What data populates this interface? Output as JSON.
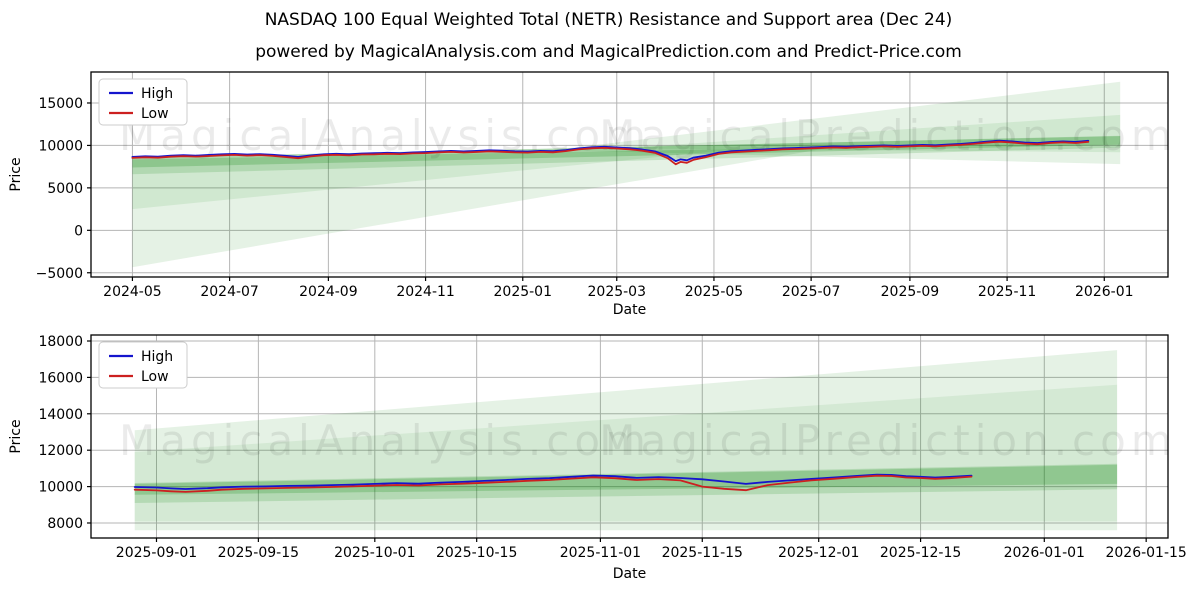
{
  "header": {
    "title": "NASDAQ 100 Equal Weighted Total (NETR) Resistance and Support area (Dec 24)",
    "subtitle": "powered by MagicalAnalysis.com and MagicalPrediction.com and Predict-Price.com"
  },
  "watermarks": {
    "left_text": "MagicalAnalysis.com",
    "right_text": "MagicalPrediction.com",
    "color": "rgba(0,0,0,0.08)"
  },
  "colors": {
    "high": "#1515cd",
    "low": "#cc2020",
    "fill": "#008000",
    "grid": "#b5b5b5",
    "spine": "#000000",
    "text": "#000000",
    "legend_border": "#cccccc"
  },
  "chart_data": [
    {
      "type": "line",
      "name": "main-history-chart",
      "xlabel": "Date",
      "ylabel": "Price",
      "legend": [
        "High",
        "Low"
      ],
      "legend_position": "upper-left",
      "grid": true,
      "xlim": [
        "2024-04-05",
        "2026-02-10"
      ],
      "ylim": [
        -5500,
        18650
      ],
      "xticks": [
        {
          "d": "2024-05-01",
          "label": "2024-05"
        },
        {
          "d": "2024-07-01",
          "label": "2024-07"
        },
        {
          "d": "2024-09-01",
          "label": "2024-09"
        },
        {
          "d": "2024-11-01",
          "label": "2024-11"
        },
        {
          "d": "2025-01-01",
          "label": "2025-01"
        },
        {
          "d": "2025-03-01",
          "label": "2025-03"
        },
        {
          "d": "2025-05-01",
          "label": "2025-05"
        },
        {
          "d": "2025-07-01",
          "label": "2025-07"
        },
        {
          "d": "2025-09-01",
          "label": "2025-09"
        },
        {
          "d": "2025-11-01",
          "label": "2025-11"
        },
        {
          "d": "2026-01-01",
          "label": "2026-01"
        }
      ],
      "yticks": [
        {
          "v": -5000,
          "label": "−5000"
        },
        {
          "v": 0,
          "label": "0"
        },
        {
          "v": 5000,
          "label": "5000"
        },
        {
          "v": 10000,
          "label": "10000"
        },
        {
          "v": 15000,
          "label": "15000"
        }
      ],
      "series": [
        {
          "name": "High",
          "color_key": "high"
        },
        {
          "name": "Low",
          "color_key": "low"
        }
      ],
      "columns": [
        "date",
        "high",
        "low"
      ],
      "rows": [
        [
          "2024-05-01",
          8650,
          8530
        ],
        [
          "2024-05-09",
          8720,
          8600
        ],
        [
          "2024-05-17",
          8680,
          8560
        ],
        [
          "2024-05-25",
          8790,
          8670
        ],
        [
          "2024-06-02",
          8850,
          8730
        ],
        [
          "2024-06-10",
          8800,
          8680
        ],
        [
          "2024-06-18",
          8880,
          8760
        ],
        [
          "2024-06-26",
          8950,
          8830
        ],
        [
          "2024-07-04",
          9000,
          8880
        ],
        [
          "2024-07-12",
          8930,
          8800
        ],
        [
          "2024-07-20",
          8980,
          8860
        ],
        [
          "2024-07-28",
          8900,
          8770
        ],
        [
          "2024-08-05",
          8780,
          8640
        ],
        [
          "2024-08-13",
          8650,
          8500
        ],
        [
          "2024-08-21",
          8830,
          8710
        ],
        [
          "2024-08-29",
          8960,
          8850
        ],
        [
          "2024-09-06",
          9010,
          8890
        ],
        [
          "2024-09-14",
          8950,
          8830
        ],
        [
          "2024-09-22",
          9050,
          8930
        ],
        [
          "2024-09-30",
          9080,
          8960
        ],
        [
          "2024-10-08",
          9130,
          9010
        ],
        [
          "2024-10-16",
          9100,
          8980
        ],
        [
          "2024-10-24",
          9180,
          9060
        ],
        [
          "2024-11-01",
          9220,
          9100
        ],
        [
          "2024-11-09",
          9300,
          9180
        ],
        [
          "2024-11-17",
          9360,
          9240
        ],
        [
          "2024-11-25",
          9300,
          9170
        ],
        [
          "2024-12-03",
          9350,
          9230
        ],
        [
          "2024-12-11",
          9420,
          9300
        ],
        [
          "2024-12-19",
          9380,
          9250
        ],
        [
          "2024-12-27",
          9310,
          9180
        ],
        [
          "2025-01-04",
          9290,
          9160
        ],
        [
          "2025-01-12",
          9360,
          9240
        ],
        [
          "2025-01-20",
          9320,
          9190
        ],
        [
          "2025-01-28",
          9450,
          9330
        ],
        [
          "2025-02-05",
          9650,
          9530
        ],
        [
          "2025-02-13",
          9780,
          9660
        ],
        [
          "2025-02-21",
          9840,
          9710
        ],
        [
          "2025-03-01",
          9770,
          9640
        ],
        [
          "2025-03-09",
          9680,
          9540
        ],
        [
          "2025-03-17",
          9520,
          9380
        ],
        [
          "2025-03-25",
          9300,
          9130
        ],
        [
          "2025-04-02",
          8750,
          8500
        ],
        [
          "2025-04-07",
          8150,
          7780
        ],
        [
          "2025-04-10",
          8350,
          8060
        ],
        [
          "2025-04-14",
          8250,
          7950
        ],
        [
          "2025-04-18",
          8550,
          8300
        ],
        [
          "2025-04-26",
          8800,
          8620
        ],
        [
          "2025-05-04",
          9150,
          9000
        ],
        [
          "2025-05-12",
          9320,
          9180
        ],
        [
          "2025-05-20",
          9400,
          9270
        ],
        [
          "2025-05-28",
          9480,
          9350
        ],
        [
          "2025-06-05",
          9560,
          9440
        ],
        [
          "2025-06-13",
          9650,
          9530
        ],
        [
          "2025-06-21",
          9700,
          9580
        ],
        [
          "2025-06-29",
          9760,
          9640
        ],
        [
          "2025-07-07",
          9820,
          9700
        ],
        [
          "2025-07-15",
          9880,
          9760
        ],
        [
          "2025-07-23",
          9850,
          9720
        ],
        [
          "2025-07-31",
          9920,
          9800
        ],
        [
          "2025-08-08",
          9960,
          9840
        ],
        [
          "2025-08-16",
          10000,
          9880
        ],
        [
          "2025-08-24",
          9950,
          9830
        ],
        [
          "2025-09-01",
          10000,
          9880
        ],
        [
          "2025-09-09",
          10060,
          9940
        ],
        [
          "2025-09-17",
          10020,
          9890
        ],
        [
          "2025-09-25",
          10110,
          9990
        ],
        [
          "2025-10-03",
          10180,
          10060
        ],
        [
          "2025-10-11",
          10300,
          10180
        ],
        [
          "2025-10-19",
          10450,
          10330
        ],
        [
          "2025-10-27",
          10560,
          10440
        ],
        [
          "2025-11-04",
          10480,
          10350
        ],
        [
          "2025-11-12",
          10350,
          10210
        ],
        [
          "2025-11-20",
          10280,
          10140
        ],
        [
          "2025-11-28",
          10400,
          10280
        ],
        [
          "2025-12-06",
          10480,
          10360
        ],
        [
          "2025-12-14",
          10420,
          10290
        ],
        [
          "2025-12-22",
          10550,
          10430
        ]
      ],
      "bands": [
        {
          "name": "support-fan-outer",
          "alpha": 0.1,
          "points": [
            [
              "2024-05-01",
              8350
            ],
            [
              "2024-05-01",
              -4350
            ],
            [
              "2025-07-15",
              9800
            ]
          ]
        },
        {
          "name": "support-fan-inner",
          "alpha": 0.09,
          "points": [
            [
              "2024-05-01",
              8350
            ],
            [
              "2024-05-01",
              2500
            ],
            [
              "2025-05-15",
              9550
            ]
          ]
        },
        {
          "name": "resistance-fan-outer",
          "alpha": 0.1,
          "points": [
            [
              "2025-01-20",
              9450
            ],
            [
              "2026-01-11",
              7800
            ],
            [
              "2026-01-11",
              17500
            ]
          ]
        },
        {
          "name": "resistance-fan-inner",
          "alpha": 0.09,
          "points": [
            [
              "2025-03-01",
              9650
            ],
            [
              "2026-01-11",
              9200
            ],
            [
              "2026-01-11",
              13600
            ]
          ]
        },
        {
          "name": "support-band-medium",
          "alpha": 0.15,
          "points": [
            [
              "2024-05-01",
              8500
            ],
            [
              "2026-01-11",
              11150
            ],
            [
              "2026-01-11",
              9750
            ],
            [
              "2024-05-01",
              6600
            ]
          ]
        },
        {
          "name": "support-band-dark",
          "alpha": 0.2,
          "points": [
            [
              "2024-05-01",
              8550
            ],
            [
              "2026-01-11",
              11100
            ],
            [
              "2026-01-11",
              10100
            ],
            [
              "2024-05-01",
              7400
            ]
          ]
        }
      ]
    },
    {
      "type": "line",
      "name": "recent-detail-chart",
      "xlabel": "Date",
      "ylabel": "Price",
      "legend": [
        "High",
        "Low"
      ],
      "legend_position": "upper-left",
      "grid": true,
      "xlim": [
        "2025-08-23",
        "2026-01-18"
      ],
      "ylim": [
        7175,
        18330
      ],
      "xticks": [
        {
          "d": "2025-09-01",
          "label": "2025-09-01"
        },
        {
          "d": "2025-09-15",
          "label": "2025-09-15"
        },
        {
          "d": "2025-10-01",
          "label": "2025-10-01"
        },
        {
          "d": "2025-10-15",
          "label": "2025-10-15"
        },
        {
          "d": "2025-11-01",
          "label": "2025-11-01"
        },
        {
          "d": "2025-11-15",
          "label": "2025-11-15"
        },
        {
          "d": "2025-12-01",
          "label": "2025-12-01"
        },
        {
          "d": "2025-12-15",
          "label": "2025-12-15"
        },
        {
          "d": "2026-01-01",
          "label": "2026-01-01"
        },
        {
          "d": "2026-01-15",
          "label": "2026-01-15"
        }
      ],
      "yticks": [
        {
          "v": 8000,
          "label": "8000"
        },
        {
          "v": 10000,
          "label": "10000"
        },
        {
          "v": 12000,
          "label": "12000"
        },
        {
          "v": 14000,
          "label": "14000"
        },
        {
          "v": 16000,
          "label": "16000"
        },
        {
          "v": 18000,
          "label": "18000"
        }
      ],
      "series": [
        {
          "name": "High",
          "color_key": "high"
        },
        {
          "name": "Low",
          "color_key": "low"
        }
      ],
      "columns": [
        "date",
        "high",
        "low"
      ],
      "rows": [
        [
          "2025-08-29",
          9980,
          9830
        ],
        [
          "2025-09-01",
          9950,
          9790
        ],
        [
          "2025-09-03",
          9900,
          9740
        ],
        [
          "2025-09-05",
          9870,
          9710
        ],
        [
          "2025-09-08",
          9910,
          9770
        ],
        [
          "2025-09-10",
          9960,
          9830
        ],
        [
          "2025-09-13",
          10000,
          9880
        ],
        [
          "2025-09-16",
          10010,
          9900
        ],
        [
          "2025-09-19",
          10040,
          9930
        ],
        [
          "2025-09-22",
          10050,
          9950
        ],
        [
          "2025-09-25",
          10080,
          9980
        ],
        [
          "2025-09-28",
          10110,
          10010
        ],
        [
          "2025-10-01",
          10150,
          10050
        ],
        [
          "2025-10-04",
          10190,
          10090
        ],
        [
          "2025-10-07",
          10160,
          10060
        ],
        [
          "2025-10-10",
          10220,
          10120
        ],
        [
          "2025-10-13",
          10260,
          10160
        ],
        [
          "2025-10-16",
          10310,
          10210
        ],
        [
          "2025-10-19",
          10360,
          10260
        ],
        [
          "2025-10-22",
          10420,
          10320
        ],
        [
          "2025-10-25",
          10460,
          10360
        ],
        [
          "2025-10-28",
          10540,
          10440
        ],
        [
          "2025-10-31",
          10610,
          10510
        ],
        [
          "2025-11-03",
          10570,
          10460
        ],
        [
          "2025-11-06",
          10480,
          10360
        ],
        [
          "2025-11-09",
          10520,
          10410
        ],
        [
          "2025-11-12",
          10470,
          10340
        ],
        [
          "2025-11-15",
          10400,
          10000
        ],
        [
          "2025-11-18",
          10280,
          9880
        ],
        [
          "2025-11-21",
          10150,
          9800
        ],
        [
          "2025-11-24",
          10260,
          10080
        ],
        [
          "2025-11-27",
          10340,
          10220
        ],
        [
          "2025-11-30",
          10420,
          10340
        ],
        [
          "2025-12-03",
          10500,
          10430
        ],
        [
          "2025-12-06",
          10580,
          10520
        ],
        [
          "2025-12-09",
          10660,
          10600
        ],
        [
          "2025-12-11",
          10640,
          10580
        ],
        [
          "2025-12-13",
          10570,
          10500
        ],
        [
          "2025-12-15",
          10540,
          10470
        ],
        [
          "2025-12-17",
          10500,
          10430
        ],
        [
          "2025-12-19",
          10530,
          10460
        ],
        [
          "2025-12-22",
          10600,
          10550
        ]
      ],
      "bands": [
        {
          "name": "forecast-fan-outer",
          "alpha": 0.1,
          "points": [
            [
              "2025-08-29",
              13100
            ],
            [
              "2026-01-11",
              17500
            ],
            [
              "2026-01-11",
              7600
            ],
            [
              "2025-08-29",
              7600
            ]
          ]
        },
        {
          "name": "forecast-fan-inner",
          "alpha": 0.07,
          "points": [
            [
              "2025-08-29",
              11900
            ],
            [
              "2026-01-11",
              15600
            ],
            [
              "2026-01-11",
              8100
            ],
            [
              "2025-08-29",
              8100
            ]
          ]
        },
        {
          "name": "support-band-medium",
          "alpha": 0.15,
          "points": [
            [
              "2025-08-29",
              10200
            ],
            [
              "2026-01-11",
              11250
            ],
            [
              "2026-01-11",
              9850
            ],
            [
              "2025-08-29",
              9100
            ]
          ]
        },
        {
          "name": "support-band-dark",
          "alpha": 0.2,
          "points": [
            [
              "2025-08-29",
              10150
            ],
            [
              "2026-01-11",
              11200
            ],
            [
              "2026-01-11",
              10150
            ],
            [
              "2025-08-29",
              9550
            ]
          ]
        }
      ]
    }
  ]
}
